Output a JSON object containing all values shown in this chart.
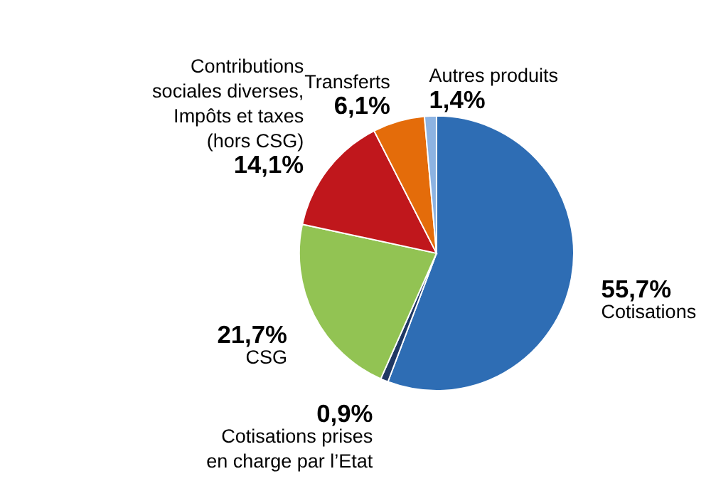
{
  "chart_data": {
    "type": "pie",
    "categories": [
      "Cotisations",
      "Cotisations prises\nen charge par l’Etat",
      "CSG",
      "Contributions\nsociales diverses,\nImpôts et taxes\n(hors CSG)",
      "Transferts",
      "Autres produits"
    ],
    "values": [
      55.7,
      0.9,
      21.7,
      14.1,
      6.1,
      1.4
    ],
    "value_labels": [
      "55,7%",
      "0,9%",
      "21,7%",
      "14,1%",
      "6,1%",
      "1,4%"
    ],
    "colors": [
      "#2e6db4",
      "#1f3864",
      "#92c353",
      "#c0171c",
      "#e46c0a",
      "#8db3e2"
    ],
    "legend": false
  }
}
